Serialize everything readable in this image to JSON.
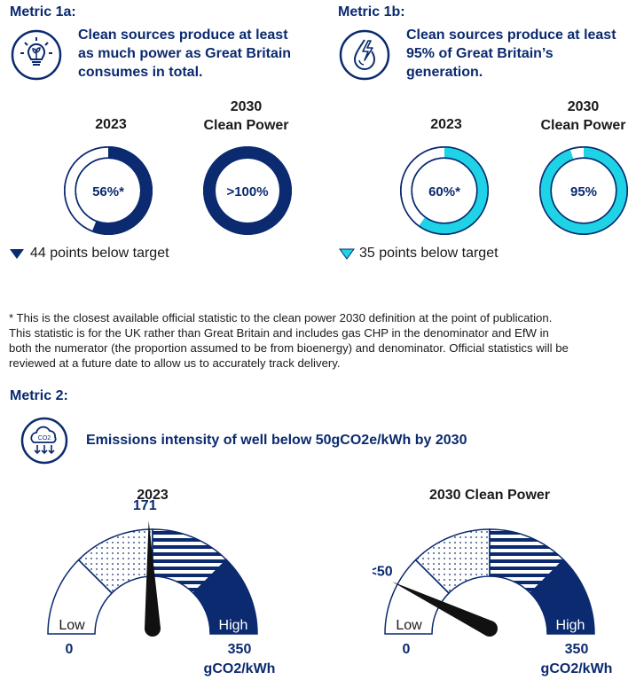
{
  "metric1a": {
    "label": "Metric 1a:",
    "description_lines": [
      "Clean sources produce at least",
      "as much power as Great Britain",
      "consumes in total."
    ],
    "icon": "lightbulb-plant-icon",
    "chart_2023": {
      "title": "2023",
      "value": 56,
      "label": "56%*"
    },
    "chart_2030": {
      "title_lines": [
        "2030",
        "Clean Power"
      ],
      "value": 100,
      "label": ">100%"
    },
    "gap_text": "44 points below target",
    "color": "#0b2a6f"
  },
  "metric1b": {
    "label": "Metric 1b:",
    "description_lines": [
      "Clean sources produce at least",
      "95% of Great Britain’s",
      "generation."
    ],
    "icon": "water-lightning-icon",
    "chart_2023": {
      "title": "2023",
      "value": 60,
      "label": "60%*"
    },
    "chart_2030": {
      "title_lines": [
        "2030",
        "Clean Power"
      ],
      "value": 95,
      "label": "95%"
    },
    "gap_text": "35 points below target",
    "color": "#1fd3e6"
  },
  "footnote_lines": [
    "* This is the closest available official statistic to the clean power 2030 definition at the point of publication.",
    "This statistic is for the UK rather than Great Britain and includes gas CHP in the denominator and EfW in",
    "both the numerator (the proportion assumed to be from bioenergy) and denominator. Official statistics will be",
    "reviewed at a future date to allow us to accurately track delivery."
  ],
  "metric2": {
    "label": "Metric 2:",
    "description": "Emissions intensity of well below 50gCO2e/kWh by 2030",
    "icon": "co2-cloud-icon",
    "icon_text": "CO2"
  },
  "chart_data": [
    {
      "type": "pie",
      "title": "2023",
      "values": [
        56,
        44
      ],
      "center_label": "56%*",
      "unit": "%"
    },
    {
      "type": "pie",
      "title": "2030 Clean Power",
      "values": [
        100,
        0
      ],
      "center_label": ">100%",
      "unit": "%"
    },
    {
      "type": "pie",
      "title": "2023",
      "values": [
        60,
        40
      ],
      "center_label": "60%*",
      "unit": "%"
    },
    {
      "type": "pie",
      "title": "2030 Clean Power",
      "values": [
        95,
        5
      ],
      "center_label": "95%",
      "unit": "%"
    },
    {
      "type": "gauge",
      "title": "2023",
      "min": 0,
      "max": 350,
      "value": 171,
      "value_label": "171",
      "min_label": "0",
      "max_label": "350",
      "unit_label": "gCO2/kWh",
      "low_label": "Low",
      "high_label": "High"
    },
    {
      "type": "gauge",
      "title": "2030 Clean Power",
      "min": 0,
      "max": 350,
      "value": 50,
      "value_label": "<50",
      "min_label": "0",
      "max_label": "350",
      "unit_label": "gCO2/kWh",
      "low_label": "Low",
      "high_label": "High"
    }
  ]
}
